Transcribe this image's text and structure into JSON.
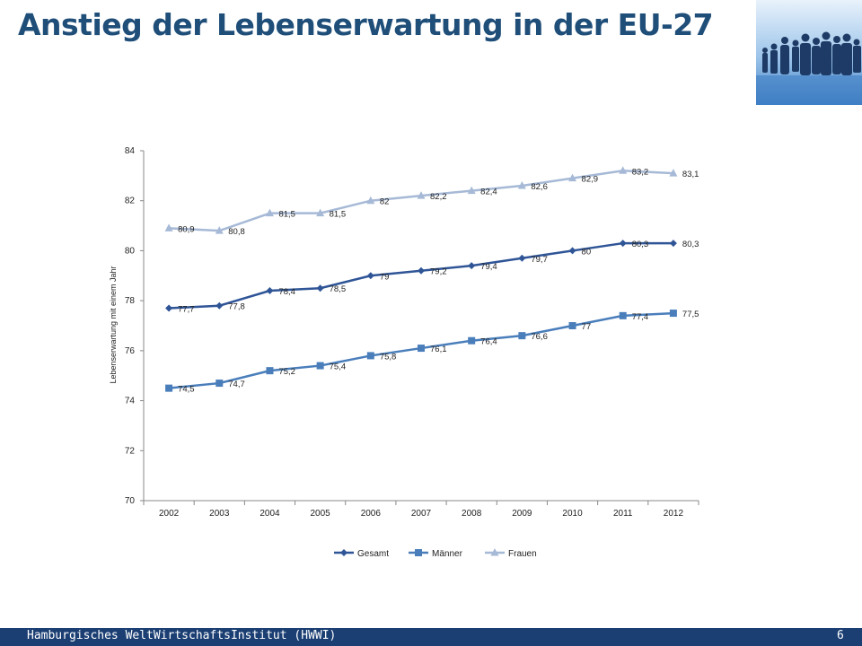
{
  "slide": {
    "title": "Anstieg der Lebenserwartung in der EU-27",
    "corner_image": "family-silhouette-image"
  },
  "footer": {
    "institution": "Hamburgisches WeltWirtschaftsInstitut (HWWI)",
    "page_number": "6"
  },
  "colors": {
    "title": "#1f4e79",
    "footer_bg": "#1b3f73",
    "gesamt": "#2f5597",
    "maenner": "#4a7ebb",
    "frauen": "#a6b9d6"
  },
  "chart_data": {
    "type": "line",
    "title": "",
    "xlabel": "",
    "ylabel": "Lebenserwartung mit einem Jahr",
    "ylim": [
      70,
      84
    ],
    "yticks": [
      "70",
      "72",
      "74",
      "76",
      "78",
      "80",
      "82",
      "84"
    ],
    "categories": [
      "2002",
      "2003",
      "2004",
      "2005",
      "2006",
      "2007",
      "2008",
      "2009",
      "2010",
      "2011",
      "2012"
    ],
    "grid": false,
    "legend_position": "bottom",
    "series": [
      {
        "name": "Gesamt",
        "marker": "diamond",
        "values": [
          77.7,
          77.8,
          78.4,
          78.5,
          79,
          79.2,
          79.4,
          79.7,
          80,
          80.3,
          80.3
        ],
        "labels": [
          "77,7",
          "77,8",
          "78,4",
          "78,5",
          "79",
          "79,2",
          "79,4",
          "79,7",
          "80",
          "80,3",
          "80,3"
        ]
      },
      {
        "name": "Männer",
        "marker": "square",
        "values": [
          74.5,
          74.7,
          75.2,
          75.4,
          75.8,
          76.1,
          76.4,
          76.6,
          77,
          77.4,
          77.5
        ],
        "labels": [
          "74,5",
          "74,7",
          "75,2",
          "75,4",
          "75,8",
          "76,1",
          "76,4",
          "76,6",
          "77",
          "77,4",
          "77,5"
        ]
      },
      {
        "name": "Frauen",
        "marker": "triangle",
        "values": [
          80.9,
          80.8,
          81.5,
          81.5,
          82,
          82.2,
          82.4,
          82.6,
          82.9,
          83.2,
          83.1
        ],
        "labels": [
          "80,9",
          "80,8",
          "81,5",
          "81,5",
          "82",
          "82,2",
          "82,4",
          "82,6",
          "82,9",
          "83,2",
          "83,1"
        ]
      }
    ]
  }
}
